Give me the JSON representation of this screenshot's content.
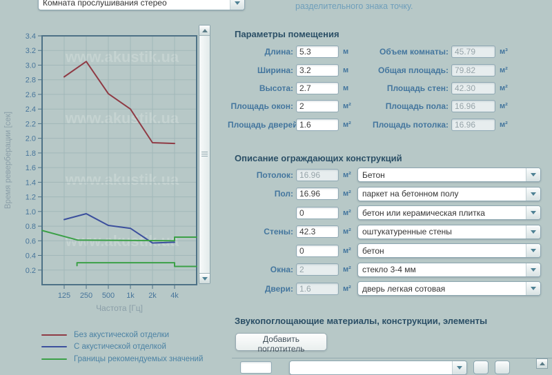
{
  "app": {
    "background": "#b7c8c7",
    "room_select": {
      "value": "Комната прослушивания стерео"
    },
    "hint_text": "разделительного знака точку."
  },
  "chart_data": {
    "type": "line",
    "title": "",
    "xlabel": "Частота [Гц]",
    "ylabel": "Время реверберации [сек]",
    "ylim": [
      0,
      3.4
    ],
    "y_tick_step": 0.2,
    "x_scale": "log",
    "x_range_hz": [
      62.5,
      8000
    ],
    "x_ticks": [
      {
        "label": "125",
        "hz": 125
      },
      {
        "label": "250",
        "hz": 250
      },
      {
        "label": "500",
        "hz": 500
      },
      {
        "label": "1k",
        "hz": 1000
      },
      {
        "label": "2k",
        "hz": 2000
      },
      {
        "label": "4k",
        "hz": 4000
      }
    ],
    "grid": true,
    "watermark": "www.akustik.ua",
    "series": [
      {
        "name": "Без акустической отделки",
        "color": "#8f3a44",
        "points": [
          [
            125,
            2.84
          ],
          [
            250,
            3.05
          ],
          [
            500,
            2.61
          ],
          [
            1000,
            2.4
          ],
          [
            2000,
            1.94
          ],
          [
            4000,
            1.93
          ]
        ]
      },
      {
        "name": "С акустической отделкой",
        "color": "#3b4f9d",
        "points": [
          [
            125,
            0.89
          ],
          [
            250,
            0.97
          ],
          [
            500,
            0.81
          ],
          [
            1000,
            0.77
          ],
          [
            2000,
            0.57
          ],
          [
            4000,
            0.58
          ]
        ]
      },
      {
        "name": "Границы рекомендуемых значений",
        "color": "#3ba047",
        "points": [
          [
            62.5,
            0.74
          ],
          [
            190,
            0.61
          ],
          [
            4000,
            0.6
          ],
          [
            4000,
            0.65
          ],
          [
            8000,
            0.65
          ]
        ]
      },
      {
        "name": "Границы рекомендуемых значений",
        "color": "#3ba047",
        "points": [
          [
            187,
            0.26
          ],
          [
            187,
            0.3
          ],
          [
            4000,
            0.3
          ],
          [
            4000,
            0.25
          ],
          [
            8000,
            0.25
          ]
        ]
      }
    ],
    "legend": [
      {
        "label": "Без акустической отделки",
        "color": "#8f3a44"
      },
      {
        "label": "С акустической отделкой",
        "color": "#3b4f9d"
      },
      {
        "label": "Границы рекомендуемых значений",
        "color": "#3ba047"
      }
    ],
    "legend_position": "bottom-left"
  },
  "room_params": {
    "title": "Параметры помещения",
    "left_fields": [
      {
        "label": "Длина:",
        "value": "5.3",
        "unit": "м",
        "readonly": false
      },
      {
        "label": "Ширина:",
        "value": "3.2",
        "unit": "м",
        "readonly": false
      },
      {
        "label": "Высота:",
        "value": "2.7",
        "unit": "м",
        "readonly": false
      },
      {
        "label": "Площадь окон:",
        "value": "2",
        "unit": "м²",
        "readonly": false
      },
      {
        "label": "Площадь дверей:",
        "value": "1.6",
        "unit": "м²",
        "readonly": false
      }
    ],
    "right_fields": [
      {
        "label": "Объем комнаты:",
        "value": "45.79",
        "unit": "м³",
        "readonly": true
      },
      {
        "label": "Общая площадь:",
        "value": "79.82",
        "unit": "м²",
        "readonly": true
      },
      {
        "label": "Площадь стен:",
        "value": "42.30",
        "unit": "м²",
        "readonly": true
      },
      {
        "label": "Площадь пола:",
        "value": "16.96",
        "unit": "м²",
        "readonly": true
      },
      {
        "label": "Площадь потолка:",
        "value": "16.96",
        "unit": "м²",
        "readonly": true
      }
    ]
  },
  "surfaces": {
    "title": "Описание ограждающих конструкций",
    "rows": [
      {
        "label": "Потолок:",
        "value": "16.96",
        "unit": "м²",
        "readonly": true,
        "material": "Бетон"
      },
      {
        "label": "Пол:",
        "value": "16.96",
        "unit": "м²",
        "readonly": false,
        "material": "паркет на бетонном полу"
      },
      {
        "label": "",
        "value": "0",
        "unit": "м²",
        "readonly": false,
        "material": "бетон или керамическая плитка"
      },
      {
        "label": "Стены:",
        "value": "42.3",
        "unit": "м²",
        "readonly": false,
        "material": "оштукатуренные стены"
      },
      {
        "label": "",
        "value": "0",
        "unit": "м²",
        "readonly": false,
        "material": "бетон"
      },
      {
        "label": "Окна:",
        "value": "2",
        "unit": "м²",
        "readonly": true,
        "material": "стекло 3-4 мм"
      },
      {
        "label": "Двери:",
        "value": "1.6",
        "unit": "м²",
        "readonly": true,
        "material": "дверь легкая сотовая"
      }
    ]
  },
  "absorbers": {
    "title": "Звукопоглощающие материалы, конструкции, элементы",
    "add_button_label": "Добавить поглотитель"
  }
}
